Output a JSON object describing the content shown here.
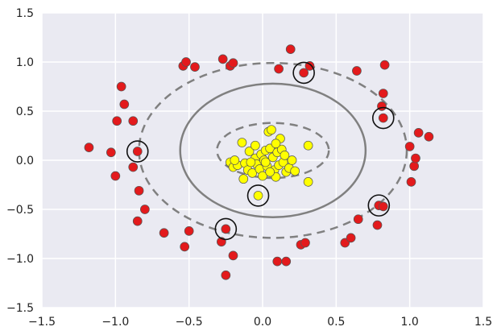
{
  "chart_data": {
    "type": "scatter",
    "title": "",
    "xlabel": "",
    "ylabel": "",
    "xlim": [
      -1.5,
      1.5
    ],
    "ylim": [
      -1.5,
      1.5
    ],
    "grid": true,
    "x_ticks": [
      -1.5,
      -1.0,
      -0.5,
      0.0,
      0.5,
      1.0,
      1.5
    ],
    "y_ticks": [
      -1.5,
      -1.0,
      -0.5,
      0.0,
      0.5,
      1.0,
      1.5
    ],
    "x_tick_labels": [
      "−1.5",
      "−1.0",
      "−0.5",
      "0.0",
      "0.5",
      "1.0",
      "1.5"
    ],
    "y_tick_labels": [
      "−1.5",
      "−1.0",
      "−0.5",
      "0.0",
      "0.5",
      "1.0",
      "1.5"
    ],
    "colors": {
      "background": "#eaeaf2",
      "grid": "#ffffff",
      "class_outer": "#e31a1c",
      "class_inner": "#ffff00",
      "point_edge": "#555555",
      "decision_boundary": "#808080",
      "support_vector_ring": "#111111"
    },
    "series": [
      {
        "color": "#e31a1c",
        "points": [
          [
            -1.18,
            0.13
          ],
          [
            -1.03,
            0.08
          ],
          [
            -1.0,
            -0.16
          ],
          [
            -0.99,
            0.4
          ],
          [
            -0.96,
            0.75
          ],
          [
            -0.94,
            0.57
          ],
          [
            -0.88,
            0.4
          ],
          [
            -0.88,
            -0.07
          ],
          [
            -0.85,
            0.09
          ],
          [
            -0.84,
            -0.31
          ],
          [
            -0.85,
            -0.62
          ],
          [
            -0.8,
            -0.5
          ],
          [
            -0.67,
            -0.74
          ],
          [
            -0.54,
            0.96
          ],
          [
            -0.52,
            1.0
          ],
          [
            -0.46,
            0.95
          ],
          [
            -0.53,
            -0.88
          ],
          [
            -0.5,
            -0.72
          ],
          [
            -0.27,
            1.03
          ],
          [
            -0.22,
            0.96
          ],
          [
            -0.2,
            0.99
          ],
          [
            -0.28,
            -0.83
          ],
          [
            -0.25,
            -0.7
          ],
          [
            -0.2,
            -0.97
          ],
          [
            -0.25,
            -1.17
          ],
          [
            0.11,
            0.93
          ],
          [
            0.19,
            1.13
          ],
          [
            0.28,
            0.89
          ],
          [
            0.32,
            0.96
          ],
          [
            0.1,
            -1.03
          ],
          [
            0.16,
            -1.03
          ],
          [
            0.26,
            -0.86
          ],
          [
            0.29,
            -0.84
          ],
          [
            0.56,
            -0.84
          ],
          [
            0.6,
            -0.79
          ],
          [
            0.64,
            0.91
          ],
          [
            0.65,
            -0.6
          ],
          [
            0.78,
            -0.66
          ],
          [
            0.79,
            -0.46
          ],
          [
            0.82,
            0.68
          ],
          [
            0.81,
            0.55
          ],
          [
            0.82,
            0.43
          ],
          [
            0.82,
            -0.47
          ],
          [
            0.83,
            0.97
          ],
          [
            1.0,
            0.14
          ],
          [
            1.01,
            -0.22
          ],
          [
            1.03,
            -0.06
          ],
          [
            1.04,
            0.02
          ],
          [
            1.06,
            0.28
          ],
          [
            1.13,
            0.24
          ]
        ]
      },
      {
        "color": "#ffff00",
        "points": [
          [
            -0.22,
            -0.02
          ],
          [
            -0.2,
            -0.07
          ],
          [
            -0.17,
            -0.05
          ],
          [
            -0.14,
            0.18
          ],
          [
            -0.13,
            -0.19
          ],
          [
            -0.12,
            -0.03
          ],
          [
            -0.1,
            -0.1
          ],
          [
            -0.09,
            0.09
          ],
          [
            -0.07,
            -0.13
          ],
          [
            -0.05,
            0.02
          ],
          [
            -0.04,
            -0.04
          ],
          [
            -0.03,
            -0.36
          ],
          [
            -0.02,
            -0.09
          ],
          [
            -0.01,
            0.06
          ],
          [
            0.0,
            -0.16
          ],
          [
            0.01,
            0.0
          ],
          [
            0.02,
            0.1
          ],
          [
            0.03,
            -0.06
          ],
          [
            0.04,
            0.29
          ],
          [
            0.05,
            0.12
          ],
          [
            0.06,
            0.31
          ],
          [
            0.07,
            0.03
          ],
          [
            0.08,
            -0.1
          ],
          [
            0.09,
            -0.17
          ],
          [
            0.1,
            0.08
          ],
          [
            0.11,
            -0.05
          ],
          [
            0.12,
            0.22
          ],
          [
            0.13,
            0.11
          ],
          [
            0.14,
            -0.02
          ],
          [
            0.15,
            0.05
          ],
          [
            0.16,
            -0.12
          ],
          [
            0.18,
            -0.08
          ],
          [
            0.2,
            0.0
          ],
          [
            0.22,
            -0.11
          ],
          [
            0.31,
            0.15
          ],
          [
            0.31,
            -0.22
          ],
          [
            -0.19,
            0.0
          ],
          [
            -0.05,
            0.15
          ],
          [
            0.02,
            -0.02
          ],
          [
            0.09,
            0.17
          ],
          [
            -0.08,
            -0.02
          ],
          [
            0.05,
            -0.12
          ]
        ]
      }
    ],
    "support_vectors": [
      [
        -0.85,
        0.09
      ],
      [
        -0.25,
        -0.7
      ],
      [
        -0.03,
        -0.36
      ],
      [
        0.28,
        0.89
      ],
      [
        0.82,
        0.43
      ],
      [
        0.79,
        -0.46
      ]
    ],
    "decision_contours": [
      {
        "level": 0,
        "style": "solid",
        "cx": 0.07,
        "cy": 0.1,
        "rx": 0.63,
        "ry": 0.68
      },
      {
        "level": -1,
        "style": "dashed",
        "cx": 0.07,
        "cy": 0.1,
        "rx": 0.91,
        "ry": 0.89
      },
      {
        "level": 1,
        "style": "dashed",
        "cx": 0.07,
        "cy": 0.1,
        "rx": 0.38,
        "ry": 0.28
      }
    ]
  }
}
